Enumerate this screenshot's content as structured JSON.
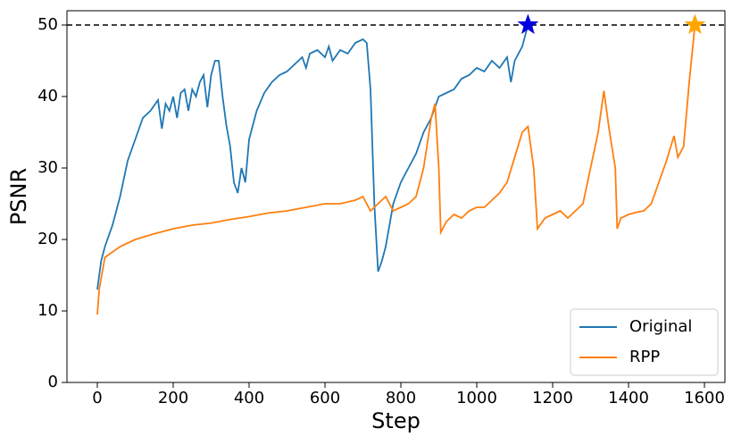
{
  "chart_data": {
    "type": "line",
    "x_label": "Step",
    "y_label": "PSNR",
    "xlim": [
      -80,
      1654
    ],
    "ylim": [
      0,
      52
    ],
    "xticks": [
      0,
      200,
      400,
      600,
      800,
      1000,
      1200,
      1400,
      1600
    ],
    "yticks": [
      0,
      10,
      20,
      30,
      40,
      50
    ],
    "reference_line": {
      "y": 50,
      "color": "#000000",
      "dashed": true
    },
    "grid": false,
    "legend": "lower right",
    "series": [
      {
        "name": "Original",
        "color": "#1f77b4",
        "end_marker": "star",
        "end_marker_color": "#0000dd",
        "x": [
          0,
          10,
          20,
          40,
          60,
          80,
          100,
          120,
          140,
          160,
          170,
          180,
          190,
          200,
          210,
          220,
          230,
          240,
          250,
          260,
          270,
          280,
          290,
          300,
          310,
          320,
          330,
          340,
          350,
          360,
          370,
          380,
          390,
          400,
          420,
          440,
          460,
          480,
          500,
          520,
          540,
          550,
          560,
          580,
          600,
          610,
          620,
          640,
          660,
          680,
          700,
          710,
          720,
          730,
          740,
          750,
          760,
          780,
          800,
          820,
          840,
          860,
          880,
          900,
          920,
          940,
          960,
          980,
          1000,
          1020,
          1040,
          1060,
          1080,
          1090,
          1100,
          1120,
          1135
        ],
        "values": [
          13,
          17,
          19,
          22,
          26,
          31,
          34,
          37,
          38,
          39.5,
          35.5,
          39,
          38,
          40,
          37,
          40.5,
          41,
          38,
          41,
          40,
          42,
          43,
          38.5,
          43,
          45,
          45,
          40,
          36,
          33,
          28,
          26.5,
          30,
          28,
          34,
          38,
          40.5,
          42,
          43,
          43.5,
          44.5,
          45.5,
          44,
          46,
          46.5,
          45.5,
          47,
          45,
          46.5,
          46,
          47.5,
          48,
          47.5,
          41,
          25,
          15.5,
          17,
          19,
          25,
          28,
          30,
          32,
          35,
          37,
          40,
          40.5,
          41,
          42.5,
          43,
          44,
          43.5,
          45,
          44,
          45.5,
          42,
          45,
          47,
          50
        ]
      },
      {
        "name": "RPP",
        "color": "#ff7f0e",
        "end_marker": "star",
        "end_marker_color": "#ffa500",
        "x": [
          0,
          5,
          20,
          60,
          100,
          150,
          200,
          250,
          300,
          350,
          400,
          450,
          500,
          550,
          600,
          640,
          680,
          700,
          720,
          740,
          760,
          780,
          800,
          820,
          840,
          860,
          880,
          890,
          900,
          905,
          920,
          940,
          960,
          980,
          1000,
          1020,
          1040,
          1060,
          1080,
          1100,
          1120,
          1135,
          1150,
          1160,
          1180,
          1200,
          1220,
          1240,
          1260,
          1280,
          1300,
          1320,
          1335,
          1350,
          1365,
          1370,
          1380,
          1400,
          1420,
          1440,
          1460,
          1480,
          1500,
          1520,
          1530,
          1545,
          1560,
          1575
        ],
        "values": [
          9.5,
          13,
          17.5,
          19,
          20,
          20.8,
          21.5,
          22,
          22.3,
          22.8,
          23.2,
          23.7,
          24,
          24.5,
          25,
          25,
          25.5,
          26,
          24,
          25,
          26,
          24,
          24.5,
          25,
          26,
          30,
          37,
          39,
          30,
          21,
          22.5,
          23.5,
          23,
          24,
          24.5,
          24.5,
          25.5,
          26.5,
          28,
          31.5,
          35,
          35.8,
          30,
          21.5,
          23,
          23.5,
          24,
          23,
          24,
          25,
          30,
          35,
          40.8,
          35,
          30,
          21.5,
          23,
          23.5,
          23.8,
          24,
          25,
          28,
          31,
          34.5,
          31.5,
          33,
          42,
          50
        ]
      }
    ]
  }
}
